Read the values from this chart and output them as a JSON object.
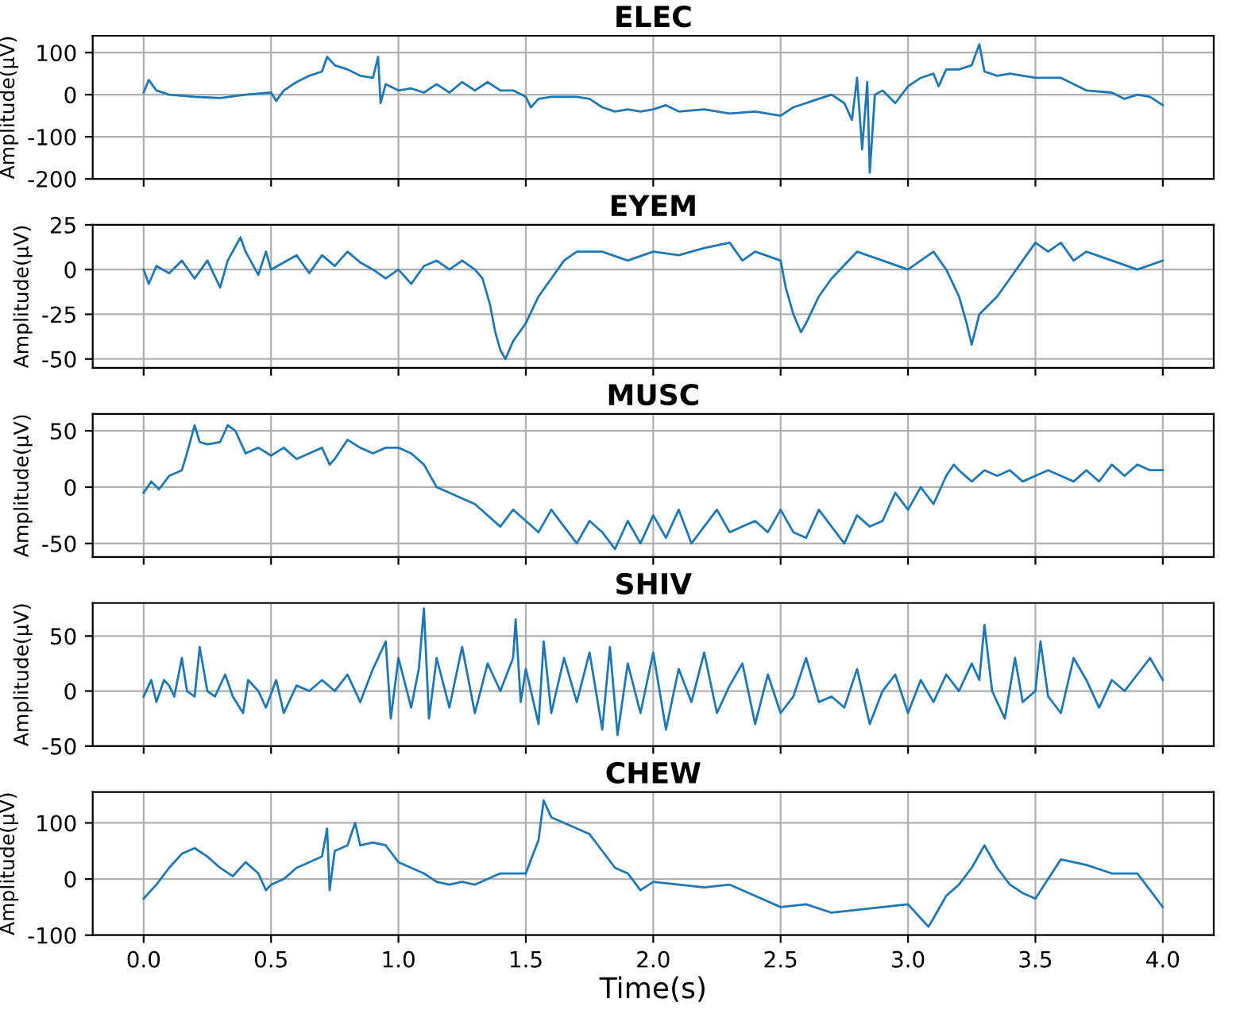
{
  "chart_data": [
    {
      "type": "line",
      "title": "ELEC",
      "ylabel": "Amplitude(μV)",
      "xlim": [
        -0.2,
        4.2
      ],
      "xticks": [
        {
          "value": 0,
          "label": null
        },
        {
          "value": 0.5,
          "label": null
        },
        {
          "value": 1,
          "label": null
        },
        {
          "value": 1.5,
          "label": null
        },
        {
          "value": 2,
          "label": null
        },
        {
          "value": 2.5,
          "label": null
        },
        {
          "value": 3,
          "label": null
        },
        {
          "value": 3.5,
          "label": null
        },
        {
          "value": 4,
          "label": null
        }
      ],
      "ylim": [
        -200,
        140
      ],
      "yticks": [
        -200,
        -100,
        0,
        100
      ],
      "grid": true,
      "tick_labels": "y",
      "series": [
        {
          "color": "#1f77b4",
          "x": [
            0,
            0.02,
            0.05,
            0.1,
            0.2,
            0.3,
            0.4,
            0.5,
            0.52,
            0.55,
            0.6,
            0.65,
            0.7,
            0.72,
            0.75,
            0.8,
            0.85,
            0.9,
            0.92,
            0.93,
            0.95,
            1.0,
            1.05,
            1.1,
            1.15,
            1.2,
            1.25,
            1.3,
            1.35,
            1.4,
            1.45,
            1.5,
            1.52,
            1.55,
            1.6,
            1.65,
            1.7,
            1.75,
            1.8,
            1.85,
            1.9,
            1.95,
            2.0,
            2.05,
            2.1,
            2.2,
            2.3,
            2.4,
            2.5,
            2.55,
            2.6,
            2.65,
            2.7,
            2.75,
            2.78,
            2.8,
            2.82,
            2.84,
            2.85,
            2.87,
            2.9,
            2.95,
            3.0,
            3.05,
            3.1,
            3.12,
            3.15,
            3.2,
            3.25,
            3.28,
            3.3,
            3.35,
            3.4,
            3.5,
            3.6,
            3.7,
            3.8,
            3.85,
            3.9,
            3.95,
            4.0
          ],
          "values": [
            5,
            35,
            10,
            0,
            -5,
            -8,
            0,
            5,
            -15,
            10,
            30,
            45,
            55,
            90,
            70,
            60,
            45,
            40,
            90,
            -20,
            25,
            10,
            15,
            5,
            25,
            5,
            30,
            10,
            30,
            10,
            10,
            -5,
            -30,
            -10,
            -5,
            -5,
            -5,
            -10,
            -30,
            -40,
            -35,
            -40,
            -35,
            -25,
            -40,
            -35,
            -45,
            -40,
            -50,
            -30,
            -20,
            -10,
            0,
            -20,
            -60,
            40,
            -130,
            30,
            -185,
            0,
            10,
            -20,
            20,
            40,
            50,
            20,
            60,
            60,
            70,
            120,
            55,
            45,
            50,
            40,
            40,
            10,
            5,
            -10,
            0,
            -5,
            -25
          ]
        }
      ]
    },
    {
      "type": "line",
      "title": "EYEM",
      "ylabel": "Amplitude(μV)",
      "xlim": [
        -0.2,
        4.2
      ],
      "xticks": [
        {
          "value": 0,
          "label": null
        },
        {
          "value": 0.5,
          "label": null
        },
        {
          "value": 1,
          "label": null
        },
        {
          "value": 1.5,
          "label": null
        },
        {
          "value": 2,
          "label": null
        },
        {
          "value": 2.5,
          "label": null
        },
        {
          "value": 3,
          "label": null
        },
        {
          "value": 3.5,
          "label": null
        },
        {
          "value": 4,
          "label": null
        }
      ],
      "ylim": [
        -55,
        25
      ],
      "yticks": [
        -50,
        -25,
        0,
        25
      ],
      "grid": true,
      "tick_labels": "y",
      "series": [
        {
          "color": "#1f77b4",
          "x": [
            0,
            0.02,
            0.05,
            0.1,
            0.15,
            0.2,
            0.25,
            0.3,
            0.33,
            0.38,
            0.4,
            0.45,
            0.48,
            0.5,
            0.6,
            0.65,
            0.7,
            0.75,
            0.8,
            0.85,
            0.9,
            0.95,
            1.0,
            1.05,
            1.1,
            1.15,
            1.2,
            1.25,
            1.3,
            1.33,
            1.36,
            1.38,
            1.4,
            1.42,
            1.45,
            1.5,
            1.55,
            1.6,
            1.65,
            1.7,
            1.8,
            1.9,
            2.0,
            2.1,
            2.2,
            2.3,
            2.35,
            2.4,
            2.5,
            2.52,
            2.55,
            2.58,
            2.6,
            2.65,
            2.7,
            2.8,
            2.9,
            3.0,
            3.05,
            3.1,
            3.15,
            3.2,
            3.23,
            3.25,
            3.28,
            3.35,
            3.4,
            3.45,
            3.5,
            3.55,
            3.6,
            3.65,
            3.7,
            3.8,
            3.9,
            4.0
          ],
          "values": [
            0,
            -8,
            2,
            -2,
            5,
            -5,
            5,
            -10,
            5,
            18,
            10,
            -3,
            10,
            0,
            8,
            -2,
            8,
            2,
            10,
            4,
            0,
            -5,
            0,
            -8,
            2,
            5,
            0,
            5,
            0,
            -5,
            -20,
            -35,
            -45,
            -50,
            -40,
            -30,
            -15,
            -5,
            5,
            10,
            10,
            5,
            10,
            8,
            12,
            15,
            5,
            10,
            5,
            -10,
            -25,
            -35,
            -30,
            -15,
            -5,
            10,
            5,
            0,
            5,
            10,
            0,
            -15,
            -30,
            -42,
            -25,
            -15,
            -5,
            5,
            15,
            10,
            15,
            5,
            10,
            5,
            0,
            5
          ]
        }
      ]
    },
    {
      "type": "line",
      "title": "MUSC",
      "ylabel": "Amplitude(μV)",
      "xlim": [
        -0.2,
        4.2
      ],
      "xticks": [
        {
          "value": 0,
          "label": null
        },
        {
          "value": 0.5,
          "label": null
        },
        {
          "value": 1,
          "label": null
        },
        {
          "value": 1.5,
          "label": null
        },
        {
          "value": 2,
          "label": null
        },
        {
          "value": 2.5,
          "label": null
        },
        {
          "value": 3,
          "label": null
        },
        {
          "value": 3.5,
          "label": null
        },
        {
          "value": 4,
          "label": null
        }
      ],
      "ylim": [
        -62,
        65
      ],
      "yticks": [
        -50,
        0,
        50
      ],
      "grid": true,
      "tick_labels": "y",
      "series": [
        {
          "color": "#1f77b4",
          "x": [
            0,
            0.03,
            0.06,
            0.1,
            0.15,
            0.17,
            0.2,
            0.22,
            0.25,
            0.3,
            0.33,
            0.36,
            0.4,
            0.45,
            0.5,
            0.55,
            0.6,
            0.65,
            0.7,
            0.73,
            0.75,
            0.8,
            0.85,
            0.9,
            0.95,
            1.0,
            1.05,
            1.1,
            1.15,
            1.2,
            1.25,
            1.3,
            1.35,
            1.4,
            1.45,
            1.5,
            1.55,
            1.6,
            1.65,
            1.7,
            1.75,
            1.8,
            1.85,
            1.9,
            1.95,
            2.0,
            2.05,
            2.1,
            2.15,
            2.2,
            2.25,
            2.3,
            2.35,
            2.4,
            2.45,
            2.5,
            2.55,
            2.6,
            2.65,
            2.7,
            2.75,
            2.8,
            2.85,
            2.9,
            2.95,
            3.0,
            3.05,
            3.1,
            3.15,
            3.18,
            3.2,
            3.25,
            3.3,
            3.35,
            3.4,
            3.45,
            3.5,
            3.55,
            3.6,
            3.65,
            3.7,
            3.75,
            3.8,
            3.85,
            3.9,
            3.95,
            4.0
          ],
          "values": [
            -5,
            5,
            -2,
            10,
            15,
            30,
            55,
            40,
            38,
            40,
            55,
            50,
            30,
            35,
            28,
            35,
            25,
            30,
            35,
            20,
            25,
            42,
            35,
            30,
            35,
            35,
            30,
            20,
            0,
            -5,
            -10,
            -15,
            -25,
            -35,
            -20,
            -30,
            -40,
            -20,
            -35,
            -50,
            -30,
            -40,
            -55,
            -30,
            -50,
            -25,
            -45,
            -20,
            -50,
            -35,
            -20,
            -40,
            -35,
            -30,
            -40,
            -20,
            -40,
            -45,
            -20,
            -35,
            -50,
            -25,
            -35,
            -30,
            -5,
            -20,
            0,
            -15,
            10,
            20,
            15,
            5,
            15,
            10,
            15,
            5,
            10,
            15,
            10,
            5,
            15,
            5,
            20,
            10,
            20,
            15,
            15
          ]
        }
      ]
    },
    {
      "type": "line",
      "title": "SHIV",
      "ylabel": "Amplitude(μV)",
      "xlim": [
        -0.2,
        4.2
      ],
      "xticks": [
        {
          "value": 0,
          "label": null
        },
        {
          "value": 0.5,
          "label": null
        },
        {
          "value": 1,
          "label": null
        },
        {
          "value": 1.5,
          "label": null
        },
        {
          "value": 2,
          "label": null
        },
        {
          "value": 2.5,
          "label": null
        },
        {
          "value": 3,
          "label": null
        },
        {
          "value": 3.5,
          "label": null
        },
        {
          "value": 4,
          "label": null
        }
      ],
      "ylim": [
        -50,
        80
      ],
      "yticks": [
        -50,
        0,
        50
      ],
      "grid": true,
      "tick_labels": "y",
      "series": [
        {
          "color": "#1f77b4",
          "x": [
            0,
            0.03,
            0.05,
            0.08,
            0.1,
            0.12,
            0.15,
            0.17,
            0.2,
            0.22,
            0.25,
            0.28,
            0.32,
            0.35,
            0.39,
            0.41,
            0.45,
            0.48,
            0.52,
            0.55,
            0.6,
            0.65,
            0.7,
            0.75,
            0.8,
            0.85,
            0.9,
            0.95,
            0.97,
            1.0,
            1.05,
            1.08,
            1.1,
            1.12,
            1.15,
            1.2,
            1.25,
            1.3,
            1.35,
            1.4,
            1.45,
            1.46,
            1.48,
            1.5,
            1.55,
            1.57,
            1.6,
            1.65,
            1.7,
            1.75,
            1.8,
            1.83,
            1.86,
            1.9,
            1.95,
            2.0,
            2.05,
            2.1,
            2.15,
            2.2,
            2.25,
            2.3,
            2.35,
            2.4,
            2.45,
            2.5,
            2.55,
            2.6,
            2.65,
            2.7,
            2.75,
            2.8,
            2.85,
            2.9,
            2.95,
            3.0,
            3.05,
            3.1,
            3.15,
            3.2,
            3.25,
            3.28,
            3.3,
            3.33,
            3.38,
            3.42,
            3.45,
            3.5,
            3.52,
            3.55,
            3.6,
            3.65,
            3.7,
            3.75,
            3.8,
            3.85,
            3.9,
            3.95,
            4.0
          ],
          "values": [
            -5,
            10,
            -10,
            10,
            5,
            -5,
            30,
            0,
            -5,
            40,
            0,
            -5,
            15,
            -5,
            -20,
            10,
            0,
            -15,
            10,
            -20,
            5,
            0,
            10,
            0,
            15,
            -10,
            20,
            45,
            -25,
            30,
            -15,
            20,
            75,
            -25,
            30,
            -15,
            40,
            -20,
            25,
            0,
            30,
            65,
            -10,
            20,
            -30,
            45,
            -20,
            30,
            -10,
            35,
            -35,
            40,
            -40,
            25,
            -20,
            35,
            -35,
            20,
            -10,
            35,
            -20,
            5,
            25,
            -30,
            15,
            -20,
            -5,
            30,
            -10,
            -5,
            -15,
            20,
            -30,
            0,
            15,
            -20,
            10,
            -10,
            15,
            0,
            25,
            10,
            60,
            0,
            -25,
            30,
            -10,
            0,
            45,
            -5,
            -20,
            30,
            10,
            -15,
            10,
            0,
            15,
            30,
            10
          ]
        }
      ]
    },
    {
      "type": "line",
      "title": "CHEW",
      "ylabel": "Amplitude(μV)",
      "xlabel": "Time(s)",
      "xlim": [
        -0.2,
        4.2
      ],
      "xticks": [
        {
          "value": 0,
          "label": "0.0"
        },
        0.5,
        {
          "value": 1,
          "label": "1.0"
        },
        1.5,
        {
          "value": 2,
          "label": "2.0"
        },
        2.5,
        {
          "value": 3,
          "label": "3.0"
        },
        3.5,
        {
          "value": 4,
          "label": "4.0"
        }
      ],
      "ylim": [
        -100,
        155
      ],
      "yticks": [
        -100,
        0,
        100
      ],
      "grid": true,
      "series": [
        {
          "color": "#1f77b4",
          "x": [
            0,
            0.05,
            0.1,
            0.15,
            0.2,
            0.25,
            0.3,
            0.35,
            0.4,
            0.45,
            0.48,
            0.5,
            0.55,
            0.6,
            0.65,
            0.7,
            0.72,
            0.73,
            0.75,
            0.8,
            0.83,
            0.85,
            0.9,
            0.95,
            1.0,
            1.05,
            1.1,
            1.15,
            1.2,
            1.25,
            1.3,
            1.35,
            1.4,
            1.45,
            1.5,
            1.55,
            1.57,
            1.6,
            1.65,
            1.7,
            1.75,
            1.8,
            1.85,
            1.9,
            1.95,
            2.0,
            2.1,
            2.2,
            2.3,
            2.4,
            2.5,
            2.6,
            2.7,
            2.8,
            2.9,
            3.0,
            3.05,
            3.08,
            3.1,
            3.15,
            3.2,
            3.25,
            3.3,
            3.35,
            3.4,
            3.45,
            3.5,
            3.55,
            3.6,
            3.7,
            3.8,
            3.9,
            3.95,
            4.0
          ],
          "values": [
            -35,
            -10,
            20,
            45,
            55,
            40,
            20,
            5,
            30,
            10,
            -20,
            -10,
            0,
            20,
            30,
            40,
            90,
            -20,
            50,
            60,
            100,
            60,
            65,
            60,
            30,
            20,
            10,
            -5,
            -10,
            -5,
            -10,
            0,
            10,
            10,
            10,
            70,
            140,
            110,
            100,
            90,
            80,
            50,
            20,
            10,
            -20,
            -5,
            -10,
            -15,
            -10,
            -30,
            -50,
            -45,
            -60,
            -55,
            -50,
            -45,
            -70,
            -85,
            -70,
            -30,
            -10,
            20,
            60,
            20,
            -10,
            -25,
            -35,
            0,
            35,
            25,
            10,
            10,
            -20,
            -50
          ]
        }
      ]
    }
  ]
}
